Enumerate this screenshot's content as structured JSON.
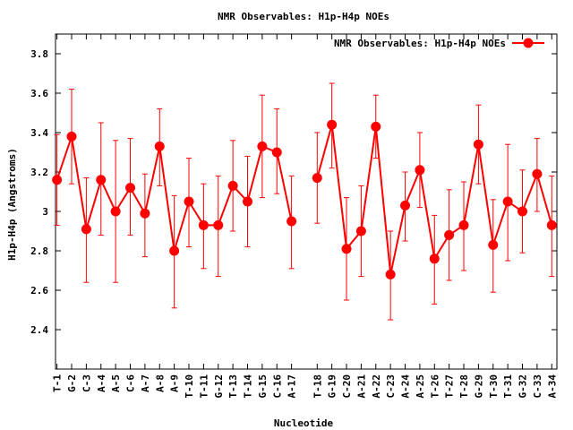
{
  "chart_data": {
    "type": "line",
    "title": "NMR Observables: H1p-H4p NOEs",
    "xlabel": "Nucleotide",
    "ylabel": "H1p-H4p (Angstroms)",
    "ylim": [
      2.2,
      3.9
    ],
    "yticks": [
      "2.4",
      "2.6",
      "2.8",
      "3",
      "3.2",
      "3.4",
      "3.6",
      "3.8"
    ],
    "grid": false,
    "legend_position": "top-right",
    "series": [
      {
        "name": "NMR Observables: H1p-H4p NOEs",
        "color": "#ff0000",
        "segments": [
          {
            "categories": [
              "T-1",
              "G-2",
              "C-3",
              "A-4",
              "A-5",
              "C-6",
              "A-7",
              "A-8",
              "A-9",
              "T-10",
              "T-11",
              "G-12",
              "T-13",
              "T-14",
              "G-15",
              "C-16",
              "A-17"
            ],
            "positions": [
              1,
              2,
              3,
              4,
              5,
              6,
              7,
              8,
              9,
              10,
              11,
              12,
              13,
              14,
              15,
              16,
              17
            ],
            "values": [
              3.16,
              3.38,
              2.91,
              3.16,
              3.0,
              3.12,
              2.99,
              3.33,
              2.8,
              3.05,
              2.93,
              2.93,
              3.13,
              3.05,
              3.33,
              3.3,
              2.95
            ],
            "err_low": [
              2.93,
              3.14,
              2.64,
              2.88,
              2.64,
              2.88,
              2.77,
              3.13,
              2.51,
              2.82,
              2.71,
              2.67,
              2.9,
              2.82,
              3.07,
              3.09,
              2.71
            ],
            "err_high": [
              3.39,
              3.62,
              3.17,
              3.45,
              3.36,
              3.37,
              3.19,
              3.52,
              3.08,
              3.27,
              3.14,
              3.18,
              3.36,
              3.28,
              3.59,
              3.52,
              3.18
            ]
          },
          {
            "categories": [
              "T-18",
              "G-19",
              "C-20",
              "A-21",
              "A-22",
              "C-23",
              "A-24",
              "A-25",
              "T-26",
              "T-27",
              "T-28",
              "G-29",
              "T-30",
              "T-31",
              "G-32",
              "C-33",
              "A-34"
            ],
            "positions": [
              18.75,
              19.75,
              20.75,
              21.75,
              22.75,
              23.75,
              24.75,
              25.75,
              26.75,
              27.75,
              28.75,
              29.75,
              30.75,
              31.75,
              32.75,
              33.75,
              34.75
            ],
            "values": [
              3.17,
              3.44,
              2.81,
              2.9,
              3.43,
              2.68,
              3.03,
              3.21,
              2.76,
              2.88,
              2.93,
              3.34,
              2.83,
              3.05,
              3.0,
              3.19,
              2.93
            ],
            "err_low": [
              2.94,
              3.22,
              2.55,
              2.67,
              3.27,
              2.45,
              2.85,
              3.02,
              2.53,
              2.65,
              2.7,
              3.14,
              2.59,
              2.75,
              2.79,
              3.0,
              2.67
            ],
            "err_high": [
              3.4,
              3.65,
              3.07,
              3.13,
              3.59,
              2.9,
              3.2,
              3.4,
              2.98,
              3.11,
              3.15,
              3.54,
              3.06,
              3.34,
              3.21,
              3.37,
              3.18
            ]
          }
        ]
      }
    ]
  }
}
